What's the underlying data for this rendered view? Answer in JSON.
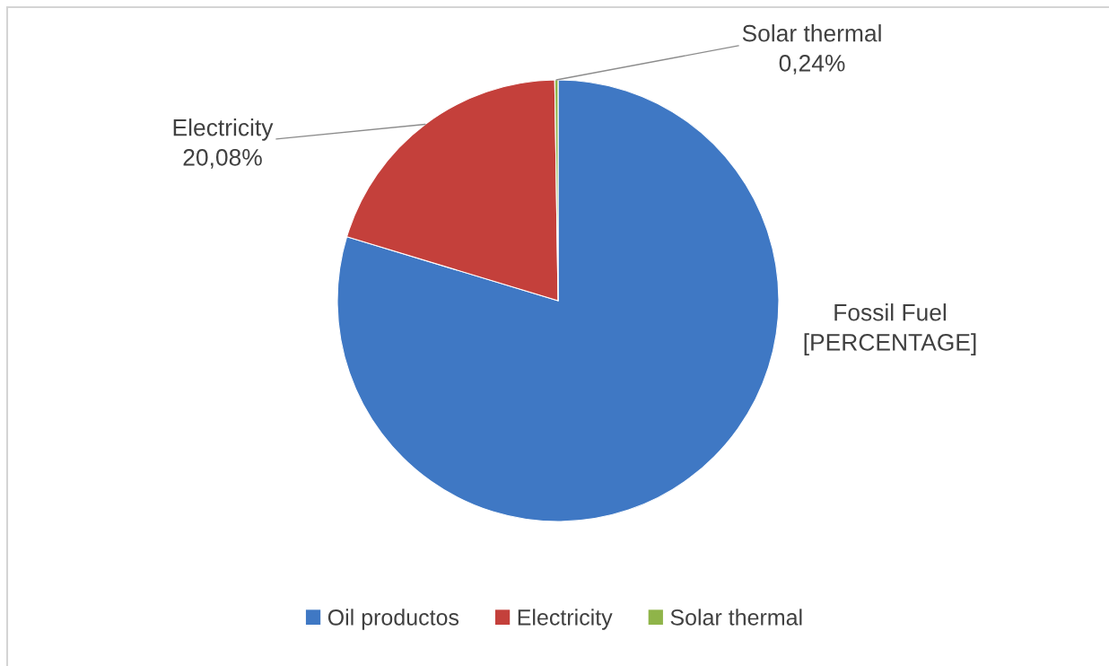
{
  "chart_data": {
    "type": "pie",
    "categories": [
      "Oil productos",
      "Electricity",
      "Solar thermal"
    ],
    "values": [
      79.68,
      20.08,
      0.24
    ],
    "colors": [
      "#3f78c4",
      "#c4403b",
      "#8fb449"
    ],
    "value_labels": [
      "Fossil Fuel\n[PERCENTAGE]",
      "Electricity\n20,08%",
      "Solar thermal\n0,24%"
    ],
    "legend": "bottom"
  }
}
